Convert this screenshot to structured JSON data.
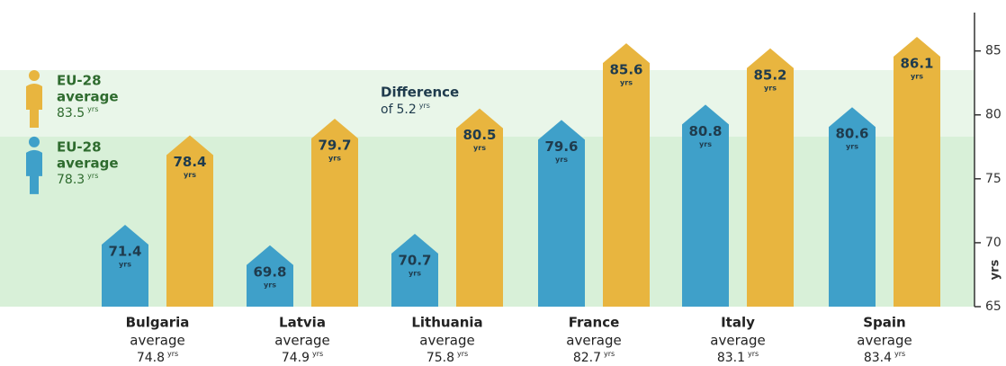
{
  "chart_data": {
    "type": "bar",
    "categories": [
      "Bulgaria",
      "Latvia",
      "Lithuania",
      "France",
      "Italy",
      "Spain"
    ],
    "series": [
      {
        "color": "#3fa0c9",
        "values": [
          71.4,
          69.8,
          70.7,
          79.6,
          80.8,
          80.6
        ]
      },
      {
        "color": "#e8b53f",
        "values": [
          78.4,
          79.7,
          80.5,
          85.6,
          85.2,
          86.1
        ]
      }
    ],
    "unit": "yrs",
    "ylim": [
      65,
      88
    ],
    "yticks": [
      65,
      70,
      75,
      80,
      85
    ],
    "y_label": "yrs",
    "reference_bands": [
      {
        "title": "EU-28",
        "label": "average",
        "value": 83.5,
        "color": "#e9f6e9",
        "icon_color": "#e8b53f"
      },
      {
        "title": "EU-28",
        "label": "average",
        "value": 78.3,
        "color": "#d8f0d8",
        "icon_color": "#3fa0c9"
      }
    ],
    "difference": {
      "label": "Difference",
      "prefix": "of",
      "value": 5.2
    },
    "category_averages": {
      "label": "average",
      "values": [
        74.8,
        74.9,
        75.8,
        82.7,
        83.1,
        83.4
      ]
    }
  }
}
